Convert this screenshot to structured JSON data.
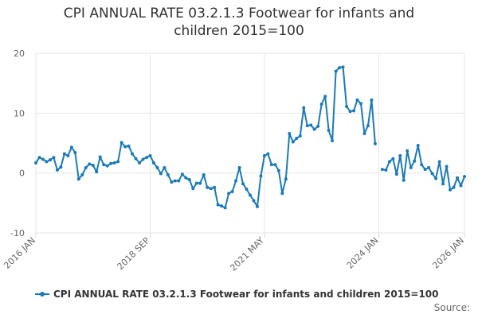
{
  "chart_data": {
    "type": "line",
    "title_lines": [
      "CPI ANNUAL RATE 03.2.1.3 Footwear for infants and",
      "children 2015=100"
    ],
    "xlabel": "",
    "ylabel": "",
    "ylim": [
      -10,
      20
    ],
    "yticks": [
      -10,
      0,
      10,
      20
    ],
    "x_start": "2016-01",
    "x_end": "2026-01",
    "xticks": [
      {
        "label": "2016 JAN",
        "month_index": 0
      },
      {
        "label": "2018 SEP",
        "month_index": 32
      },
      {
        "label": "2021 MAY",
        "month_index": 64
      },
      {
        "label": "2024 JAN",
        "month_index": 96
      },
      {
        "label": "2026 JAN",
        "month_index": 120
      }
    ],
    "grid": true,
    "legend_position": "bottom",
    "series": [
      {
        "name": "CPI ANNUAL RATE 03.2.1.3 Footwear for infants and children 2015=100",
        "color": "#1a7ab8",
        "values": [
          1.7,
          2.6,
          2.3,
          1.9,
          2.2,
          2.6,
          0.5,
          1.0,
          3.2,
          2.9,
          4.3,
          3.4,
          -1.0,
          -0.3,
          0.9,
          1.5,
          1.3,
          0.2,
          2.7,
          1.4,
          1.2,
          1.6,
          1.7,
          1.9,
          5.1,
          4.4,
          4.5,
          3.2,
          2.4,
          1.7,
          2.3,
          2.6,
          2.9,
          1.7,
          0.9,
          -0.1,
          0.9,
          -0.3,
          -1.5,
          -1.3,
          -1.3,
          -0.2,
          -0.8,
          -1.1,
          -2.6,
          -1.7,
          -1.7,
          -0.3,
          -2.4,
          -2.6,
          -2.4,
          -5.3,
          -5.5,
          -5.8,
          -3.4,
          -3.1,
          -1.3,
          0.9,
          -1.8,
          -2.7,
          -3.7,
          -4.6,
          -5.6,
          -0.5,
          2.9,
          3.2,
          1.4,
          1.4,
          0.4,
          -3.4,
          -1.0,
          6.6,
          5.2,
          5.8,
          6.2,
          10.9,
          7.9,
          8.0,
          7.3,
          7.8,
          11.5,
          12.8,
          7.1,
          5.4,
          17.0,
          17.6,
          17.7,
          11.1,
          10.3,
          10.4,
          12.2,
          11.6,
          6.6,
          7.9,
          12.2,
          4.9,
          null,
          0.6,
          0.5,
          1.9,
          2.4,
          -0.2,
          2.9,
          -1.2,
          3.7,
          0.9,
          2.0,
          4.6,
          1.4,
          0.6,
          0.9,
          -0.1,
          -0.9,
          1.9,
          -1.8,
          1.1,
          -2.8,
          -2.4,
          -0.8,
          -2.1,
          -0.6
        ]
      }
    ]
  },
  "legend": {
    "label": "CPI ANNUAL RATE 03.2.1.3 Footwear for infants and children 2015=100"
  },
  "source": {
    "label": "Source:"
  }
}
